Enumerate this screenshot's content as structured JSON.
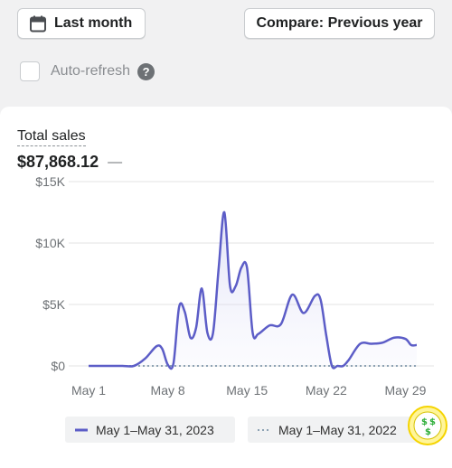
{
  "toolbar": {
    "date_label": "Last month",
    "compare_label": "Compare: Previous year"
  },
  "auto_refresh": {
    "label": "Auto-refresh",
    "checked": false,
    "help_glyph": "?"
  },
  "metric": {
    "title": "Total sales",
    "value": "$87,868.12",
    "comparison": "—"
  },
  "colors": {
    "current": "#5c5dc7",
    "previous": "#8ea3b4",
    "grid": "#e3e3e3",
    "accent_logo": "#f5d400"
  },
  "icons": {
    "date_button": "calendar-icon",
    "help": "question-circle-icon"
  },
  "legend": [
    {
      "label": "May 1–May 31, 2023"
    },
    {
      "label": "May 1–May 31, 2022"
    }
  ],
  "chart_data": {
    "type": "area",
    "title": "Total sales",
    "x": [
      1,
      2,
      3,
      4,
      5,
      6,
      7,
      7.5,
      8,
      8.5,
      9,
      9.5,
      10,
      10.5,
      11,
      11.5,
      12,
      12.5,
      13,
      13.5,
      14,
      14.5,
      15,
      15.5,
      16,
      17,
      18,
      19,
      20,
      21,
      21.5,
      22,
      22.5,
      23,
      23.5,
      24,
      25,
      26,
      27,
      28,
      29,
      29.5,
      30
    ],
    "y_ticks": [
      "$0",
      "$5K",
      "$10K",
      "$15K"
    ],
    "y_tick_values": [
      0,
      5000,
      10000,
      15000
    ],
    "x_ticks": [
      "May 1",
      "May 8",
      "May 15",
      "May 22",
      "May 29"
    ],
    "x_tick_values": [
      1,
      8,
      15,
      22,
      29
    ],
    "ylim": [
      0,
      15000
    ],
    "xlim": [
      1,
      30
    ],
    "grid": true,
    "legend_position": "bottom",
    "series": [
      {
        "name": "May 1–May 31, 2023",
        "values": [
          0,
          0,
          0,
          0,
          0,
          600,
          1600,
          1400,
          100,
          200,
          4800,
          4400,
          2300,
          3100,
          6300,
          2700,
          2700,
          8000,
          12500,
          6500,
          6500,
          8000,
          8000,
          2700,
          2600,
          3300,
          3400,
          5800,
          4300,
          5700,
          5400,
          2500,
          0,
          0,
          0,
          500,
          1800,
          1800,
          1900,
          2300,
          2200,
          1700,
          1700
        ]
      },
      {
        "name": "May 1–May 31, 2022",
        "values": [
          0,
          0,
          0,
          0,
          0,
          0,
          0,
          0,
          0,
          0,
          0,
          0,
          0,
          0,
          0,
          0,
          0,
          0,
          0,
          0,
          0,
          0,
          0,
          0,
          0,
          0,
          0,
          0,
          0,
          0,
          0,
          0,
          0,
          0,
          0,
          0,
          0,
          0,
          0,
          0,
          0,
          0,
          0
        ]
      }
    ]
  }
}
